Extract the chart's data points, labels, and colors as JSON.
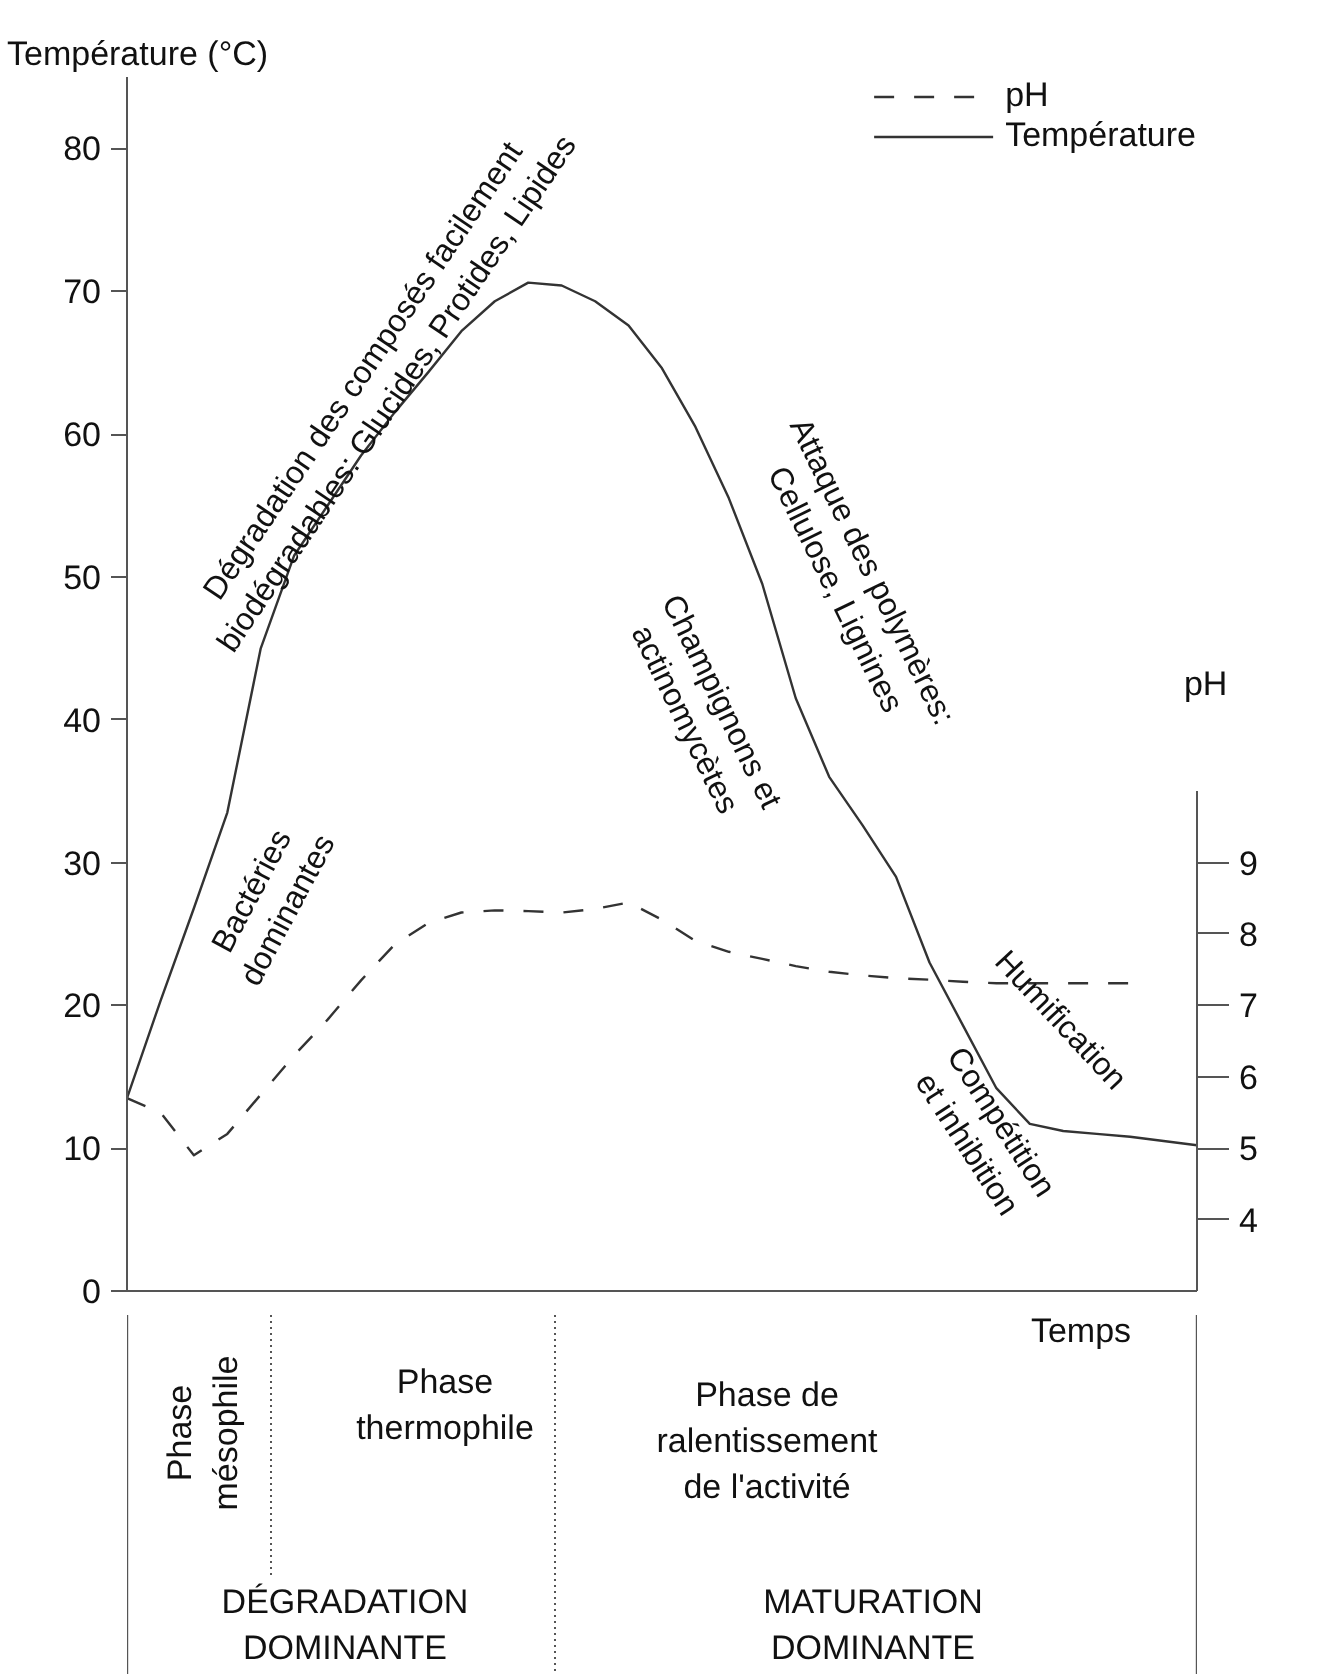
{
  "chart_data": [
    {
      "type": "line",
      "ylabel": "Température (°C)",
      "y2label": "pH",
      "categories": [
        null,
        null,
        null,
        null,
        null,
        null,
        null,
        null,
        null,
        null,
        null,
        null,
        null,
        null,
        null,
        null,
        null,
        null,
        null,
        null,
        null,
        null,
        null,
        null,
        null,
        null,
        null,
        null,
        null,
        null,
        null,
        null,
        null
      ],
      "ylim": [
        0,
        85
      ],
      "yticks": [
        0,
        10,
        20,
        30,
        40,
        50,
        60,
        70,
        80
      ],
      "y2lim": [
        3,
        20
      ],
      "y2ticks": [
        4,
        5,
        6,
        7,
        8,
        9
      ],
      "grid": false,
      "legend": "top right",
      "series": [
        {
          "name": "pH",
          "color": "#333333",
          "line_style": "dashed",
          "axis": "y2",
          "values": [
            5.7,
            5.5,
            4.9,
            5.2,
            5.75,
            6.3,
            6.8,
            7.35,
            7.85,
            8.15,
            8.3,
            8.33,
            8.32,
            8.3,
            8.35,
            8.44,
            8.2,
            7.9,
            7.75,
            7.65,
            7.55,
            7.47,
            7.42,
            7.38,
            7.36,
            7.33,
            7.31,
            7.31,
            7.31,
            7.31,
            7.31,
            null,
            null
          ]
        },
        {
          "name": "Température",
          "color": "#333333",
          "line_style": "solid",
          "values": [
            13.5,
            20.3,
            26.8,
            33.5,
            45,
            51.5,
            55,
            58.5,
            61.5,
            64.3,
            67.2,
            69.3,
            70.6,
            70.4,
            69.3,
            67.6,
            64.6,
            60.5,
            55.5,
            49.5,
            41.5,
            36,
            32.6,
            29,
            23,
            18.6,
            14.2,
            11.7,
            11.2,
            11,
            10.8,
            10.5,
            10.2
          ]
        }
      ],
      "annotations": [
        "Dégradation des composés facilement\nbiodégradables: Glucides, Protides, Lipides",
        "Bactéries\ndominantes",
        "Champignons et\nactinomycètes",
        "Attaque des polymères:\nCellulose, Lignines",
        "Humification",
        "Compétition\net inhibition"
      ]
    },
    {
      "type": "other",
      "annotations": [
        "Temps",
        "Phase\nmésophile",
        "Phase\nthermophile",
        "Phase de\nralentissement\nde l'activité",
        "DÉGRADATION\nDOMINANTE",
        "MATURATION\nDOMINANTE"
      ]
    }
  ]
}
